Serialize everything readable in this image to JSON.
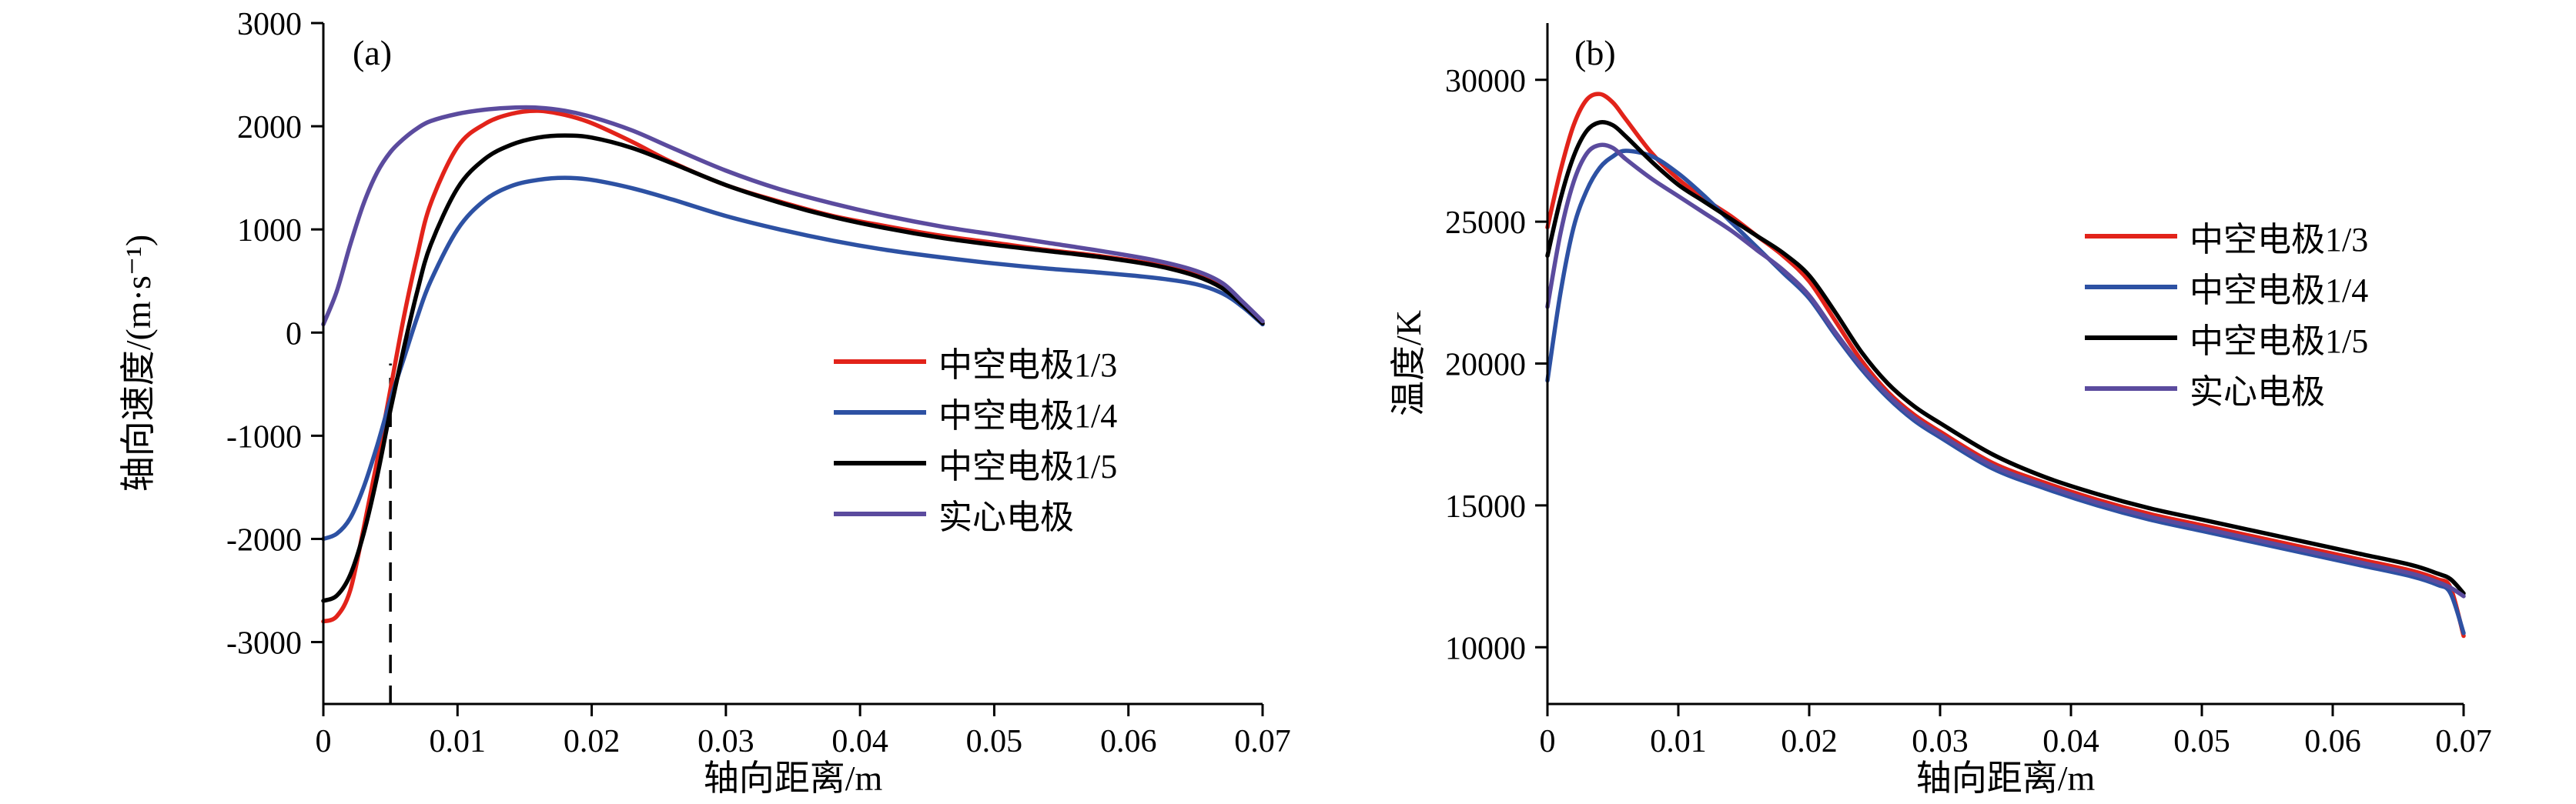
{
  "figure": {
    "background": "#ffffff",
    "text_color": "#000000"
  },
  "chart_data": [
    {
      "id": "chart-a",
      "type": "line",
      "panel_label": "(a)",
      "xlabel": "轴向距离/m",
      "ylabel": "轴向速度/(m·s⁻¹)",
      "xlim": [
        0,
        0.07
      ],
      "ylim": [
        -3600,
        3000
      ],
      "xticks": [
        0,
        0.01,
        0.02,
        0.03,
        0.04,
        0.05,
        0.06,
        0.07
      ],
      "xtick_labels": [
        "0",
        "0.01",
        "0.02",
        "0.03",
        "0.04",
        "0.05",
        "0.06",
        "0.07"
      ],
      "yticks": [
        -3000,
        -2000,
        -1000,
        0,
        1000,
        2000,
        3000
      ],
      "ytick_labels": [
        "-3000",
        "-2000",
        "-1000",
        "0",
        "1000",
        "2000",
        "3000"
      ],
      "grid": false,
      "legend_position": "center-right",
      "annotations": [
        {
          "type": "vline-dashed",
          "x": 0.005,
          "y_from": -3600,
          "y_to": -300,
          "color": "#000000"
        }
      ],
      "series": [
        {
          "name": "中空电极1/3",
          "color": "#e2231a",
          "x": [
            0,
            0.001,
            0.002,
            0.003,
            0.004,
            0.005,
            0.006,
            0.007,
            0.008,
            0.01,
            0.012,
            0.014,
            0.016,
            0.018,
            0.02,
            0.023,
            0.026,
            0.03,
            0.034,
            0.038,
            0.042,
            0.046,
            0.05,
            0.054,
            0.058,
            0.062,
            0.065,
            0.067,
            0.0685,
            0.07
          ],
          "y": [
            -2800,
            -2750,
            -2500,
            -1900,
            -1250,
            -550,
            150,
            750,
            1250,
            1800,
            2020,
            2120,
            2150,
            2110,
            2030,
            1850,
            1650,
            1430,
            1270,
            1130,
            1030,
            940,
            870,
            800,
            740,
            660,
            560,
            440,
            280,
            90
          ]
        },
        {
          "name": "中空电极1/4",
          "color": "#2d51a3",
          "x": [
            0,
            0.001,
            0.002,
            0.003,
            0.004,
            0.005,
            0.006,
            0.007,
            0.008,
            0.01,
            0.012,
            0.014,
            0.016,
            0.018,
            0.02,
            0.023,
            0.026,
            0.03,
            0.034,
            0.038,
            0.042,
            0.046,
            0.05,
            0.054,
            0.058,
            0.062,
            0.065,
            0.067,
            0.0685,
            0.07
          ],
          "y": [
            -2000,
            -1950,
            -1800,
            -1500,
            -1100,
            -650,
            -250,
            150,
            500,
            1000,
            1280,
            1420,
            1480,
            1500,
            1480,
            1400,
            1290,
            1130,
            1000,
            890,
            800,
            730,
            670,
            620,
            580,
            530,
            470,
            380,
            250,
            80
          ]
        },
        {
          "name": "中空电极1/5",
          "color": "#000000",
          "x": [
            0,
            0.001,
            0.002,
            0.003,
            0.004,
            0.005,
            0.006,
            0.007,
            0.008,
            0.01,
            0.012,
            0.014,
            0.016,
            0.018,
            0.02,
            0.023,
            0.026,
            0.03,
            0.034,
            0.038,
            0.042,
            0.046,
            0.05,
            0.054,
            0.058,
            0.062,
            0.065,
            0.067,
            0.0685,
            0.07
          ],
          "y": [
            -2600,
            -2550,
            -2350,
            -1950,
            -1400,
            -750,
            -150,
            400,
            850,
            1400,
            1680,
            1820,
            1890,
            1910,
            1890,
            1790,
            1640,
            1430,
            1260,
            1120,
            1010,
            920,
            850,
            790,
            730,
            650,
            550,
            430,
            270,
            90
          ]
        },
        {
          "name": "实心电极",
          "color": "#5b4b9e",
          "x": [
            0,
            0.001,
            0.002,
            0.003,
            0.004,
            0.005,
            0.006,
            0.007,
            0.008,
            0.01,
            0.012,
            0.014,
            0.016,
            0.018,
            0.02,
            0.023,
            0.026,
            0.03,
            0.034,
            0.038,
            0.042,
            0.046,
            0.05,
            0.054,
            0.058,
            0.062,
            0.065,
            0.067,
            0.0685,
            0.07
          ],
          "y": [
            80,
            400,
            850,
            1250,
            1550,
            1750,
            1880,
            1980,
            2050,
            2120,
            2160,
            2180,
            2180,
            2150,
            2090,
            1960,
            1790,
            1570,
            1390,
            1250,
            1130,
            1030,
            950,
            870,
            790,
            700,
            600,
            480,
            300,
            110
          ]
        }
      ]
    },
    {
      "id": "chart-b",
      "type": "line",
      "panel_label": "(b)",
      "xlabel": "轴向距离/m",
      "ylabel": "温度/K",
      "xlim": [
        0,
        0.07
      ],
      "ylim": [
        8000,
        32000
      ],
      "xticks": [
        0,
        0.01,
        0.02,
        0.03,
        0.04,
        0.05,
        0.06,
        0.07
      ],
      "xtick_labels": [
        "0",
        "0.01",
        "0.02",
        "0.03",
        "0.04",
        "0.05",
        "0.06",
        "0.07"
      ],
      "yticks": [
        10000,
        15000,
        20000,
        25000,
        30000
      ],
      "ytick_labels": [
        "10000",
        "15000",
        "20000",
        "25000",
        "30000"
      ],
      "grid": false,
      "legend_position": "right-upper",
      "annotations": [],
      "series": [
        {
          "name": "中空电极1/3",
          "color": "#e2231a",
          "x": [
            0,
            0.001,
            0.002,
            0.003,
            0.004,
            0.005,
            0.006,
            0.008,
            0.01,
            0.012,
            0.014,
            0.016,
            0.018,
            0.02,
            0.022,
            0.024,
            0.026,
            0.028,
            0.03,
            0.034,
            0.038,
            0.042,
            0.046,
            0.05,
            0.054,
            0.058,
            0.062,
            0.066,
            0.068,
            0.069,
            0.07
          ],
          "y": [
            24800,
            26800,
            28400,
            29300,
            29500,
            29200,
            28600,
            27400,
            26500,
            25800,
            25200,
            24500,
            23800,
            22900,
            21500,
            20100,
            19000,
            18200,
            17600,
            16500,
            15800,
            15200,
            14700,
            14300,
            13900,
            13500,
            13100,
            12700,
            12400,
            12100,
            10400
          ]
        },
        {
          "name": "中空电极1/4",
          "color": "#2d51a3",
          "x": [
            0,
            0.001,
            0.002,
            0.003,
            0.004,
            0.005,
            0.006,
            0.008,
            0.01,
            0.012,
            0.014,
            0.016,
            0.018,
            0.02,
            0.022,
            0.024,
            0.026,
            0.028,
            0.03,
            0.034,
            0.038,
            0.042,
            0.046,
            0.05,
            0.054,
            0.058,
            0.062,
            0.066,
            0.068,
            0.069,
            0.07
          ],
          "y": [
            19400,
            22500,
            24800,
            26100,
            26900,
            27300,
            27500,
            27300,
            26700,
            25900,
            25000,
            24100,
            23200,
            22300,
            21000,
            19800,
            18800,
            18000,
            17400,
            16300,
            15600,
            15000,
            14500,
            14100,
            13700,
            13300,
            12900,
            12500,
            12200,
            11900,
            10500
          ]
        },
        {
          "name": "中空电极1/5",
          "color": "#000000",
          "x": [
            0,
            0.001,
            0.002,
            0.003,
            0.004,
            0.005,
            0.006,
            0.008,
            0.01,
            0.012,
            0.014,
            0.016,
            0.018,
            0.02,
            0.022,
            0.024,
            0.026,
            0.028,
            0.03,
            0.034,
            0.038,
            0.042,
            0.046,
            0.05,
            0.054,
            0.058,
            0.062,
            0.066,
            0.068,
            0.069,
            0.07
          ],
          "y": [
            23800,
            25800,
            27300,
            28200,
            28500,
            28400,
            28000,
            27100,
            26300,
            25700,
            25100,
            24500,
            23900,
            23100,
            21800,
            20400,
            19300,
            18500,
            17900,
            16800,
            16000,
            15400,
            14900,
            14500,
            14100,
            13700,
            13300,
            12900,
            12600,
            12400,
            11900
          ]
        },
        {
          "name": "实心电极",
          "color": "#5b4b9e",
          "x": [
            0,
            0.001,
            0.002,
            0.003,
            0.004,
            0.005,
            0.006,
            0.008,
            0.01,
            0.012,
            0.014,
            0.016,
            0.018,
            0.02,
            0.022,
            0.024,
            0.026,
            0.028,
            0.03,
            0.034,
            0.038,
            0.042,
            0.046,
            0.05,
            0.054,
            0.058,
            0.062,
            0.066,
            0.068,
            0.069,
            0.07
          ],
          "y": [
            22000,
            24600,
            26400,
            27400,
            27700,
            27600,
            27200,
            26500,
            25900,
            25300,
            24700,
            24000,
            23300,
            22400,
            21100,
            19900,
            18900,
            18100,
            17500,
            16400,
            15700,
            15100,
            14600,
            14200,
            13800,
            13400,
            13000,
            12600,
            12300,
            12100,
            11800
          ]
        }
      ]
    }
  ]
}
